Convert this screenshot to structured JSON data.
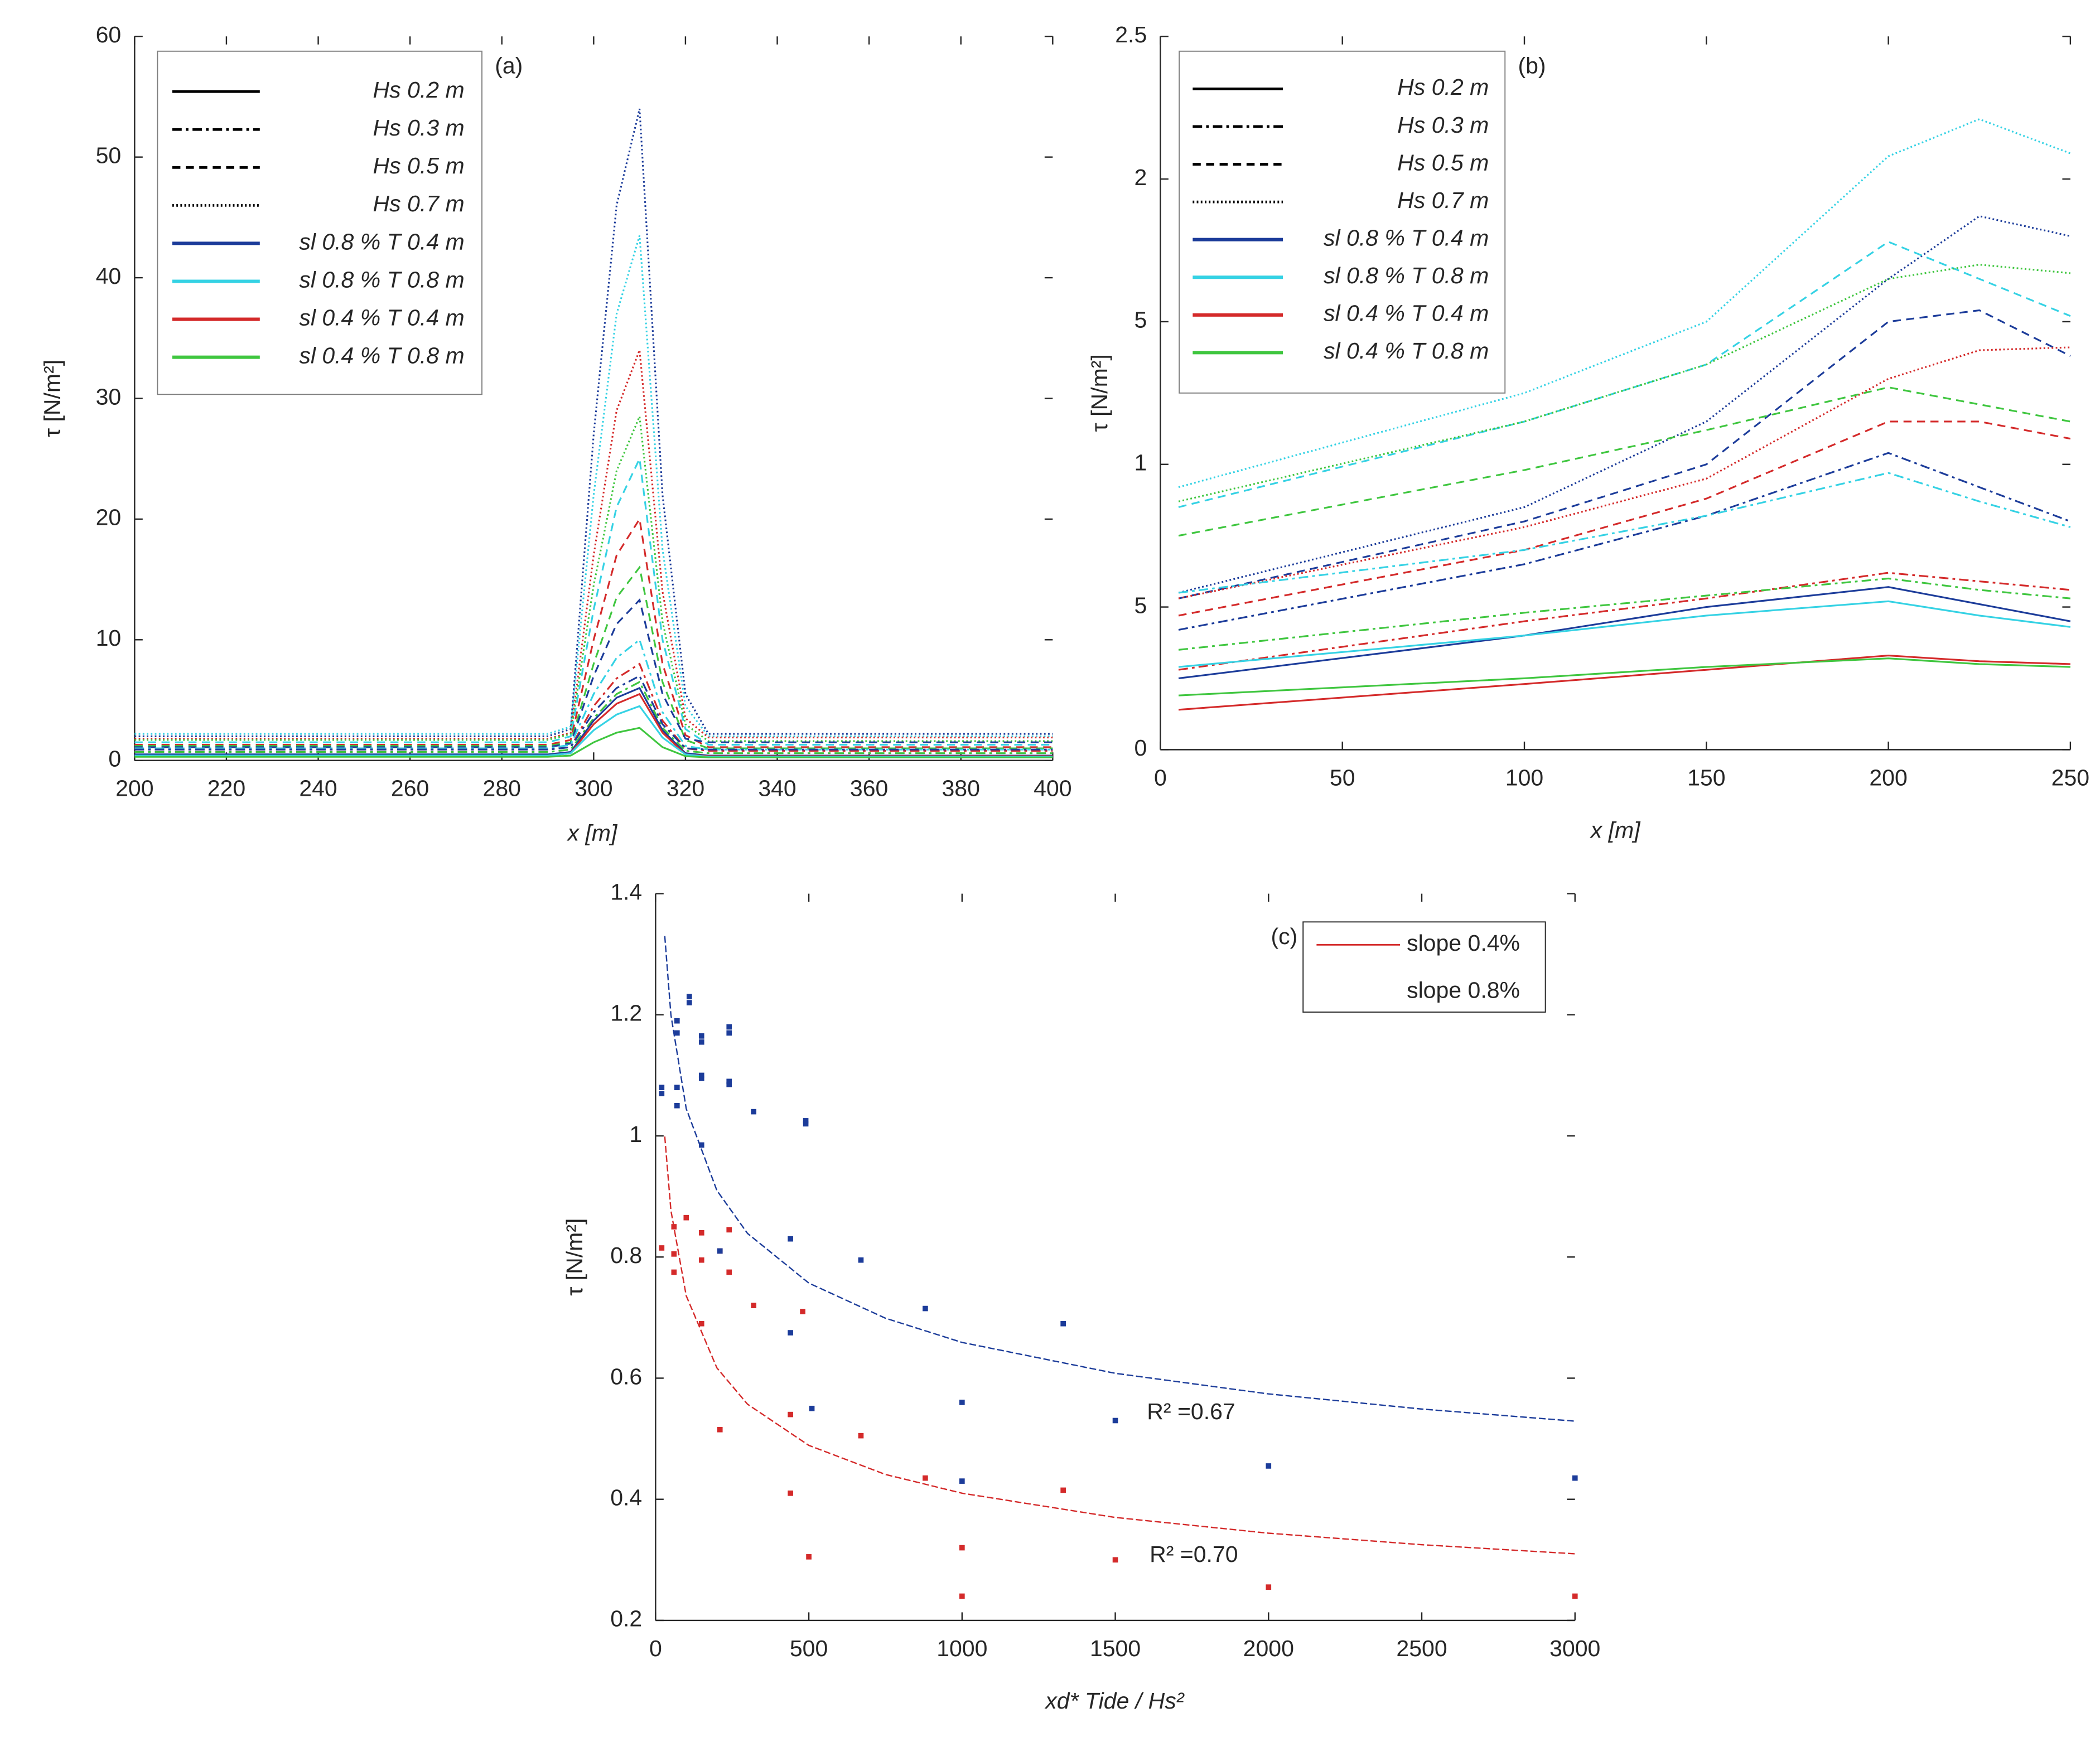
{
  "chart_data": [
    {
      "type": "line",
      "panel_label": "(a)",
      "xlabel": "x [m]",
      "ylabel": "τ [N/m²]",
      "xlim": [
        200,
        400
      ],
      "xticks": [
        200,
        220,
        240,
        260,
        280,
        300,
        320,
        340,
        360,
        380,
        400
      ],
      "ylim": [
        0,
        60
      ],
      "yticks": [
        0,
        10,
        20,
        30,
        40,
        50,
        60
      ],
      "legend": {
        "styles": [
          {
            "label": "Hs 0.2 m",
            "dash": "solid"
          },
          {
            "label": "Hs 0.3 m",
            "dash": "dashdot"
          },
          {
            "label": "Hs 0.5 m",
            "dash": "dashed"
          },
          {
            "label": "Hs 0.7 m",
            "dash": "dotted"
          }
        ],
        "colors": [
          {
            "label": "sl 0.8 % T 0.4 m",
            "color": "#1c3c9a"
          },
          {
            "label": "sl 0.8 % T 0.8 m",
            "color": "#35d2e4"
          },
          {
            "label": "sl 0.4 % T 0.4 m",
            "color": "#d42a2a"
          },
          {
            "label": "sl 0.4 % T 0.8 m",
            "color": "#3fc63f"
          }
        ]
      },
      "x": [
        200,
        290,
        295,
        300,
        305,
        310,
        315,
        320,
        325,
        400
      ],
      "series": [
        {
          "dash": "dotted",
          "color": "#1c3c9a",
          "values": [
            2.0,
            2.0,
            2.6,
            27,
            46,
            54,
            22,
            5.5,
            2.2,
            2.2
          ]
        },
        {
          "dash": "dotted",
          "color": "#35d2e4",
          "values": [
            2.2,
            2.2,
            2.8,
            22,
            37,
            43.5,
            17.5,
            4.5,
            2.0,
            2.0
          ]
        },
        {
          "dash": "dotted",
          "color": "#d42a2a",
          "values": [
            1.8,
            1.8,
            2.3,
            17,
            29,
            34,
            14,
            3.5,
            1.9,
            1.9
          ]
        },
        {
          "dash": "dotted",
          "color": "#3fc63f",
          "values": [
            1.7,
            1.7,
            2.2,
            14.5,
            24,
            28.5,
            11.5,
            3,
            1.6,
            1.6
          ]
        },
        {
          "dash": "dashed",
          "color": "#35d2e4",
          "values": [
            1.5,
            1.5,
            2,
            12.5,
            21,
            25,
            10,
            2.6,
            1.3,
            1.3
          ]
        },
        {
          "dash": "dashed",
          "color": "#d42a2a",
          "values": [
            1.3,
            1.3,
            1.7,
            10,
            17,
            20,
            8,
            2.1,
            1.1,
            1.1
          ]
        },
        {
          "dash": "dashed",
          "color": "#3fc63f",
          "values": [
            1.2,
            1.2,
            1.5,
            8,
            13.5,
            16,
            6.5,
            1.7,
            1.0,
            1.0
          ]
        },
        {
          "dash": "dashed",
          "color": "#1c3c9a",
          "values": [
            1.1,
            1.1,
            1.4,
            7,
            11.3,
            13.3,
            5.5,
            1.8,
            1.5,
            1.5
          ]
        },
        {
          "dash": "dashdot",
          "color": "#35d2e4",
          "values": [
            1.0,
            1.0,
            1.3,
            5.5,
            8.5,
            10,
            4,
            1.2,
            0.9,
            0.9
          ]
        },
        {
          "dash": "dashdot",
          "color": "#d42a2a",
          "values": [
            0.9,
            0.9,
            1.1,
            4.5,
            6.8,
            8,
            3.3,
            1,
            0.8,
            0.8
          ]
        },
        {
          "dash": "dashdot",
          "color": "#1c3c9a",
          "values": [
            0.9,
            0.9,
            1.1,
            4,
            6,
            7,
            3,
            1,
            0.9,
            0.9
          ]
        },
        {
          "dash": "dashdot",
          "color": "#3fc63f",
          "values": [
            0.7,
            0.7,
            0.9,
            3.5,
            5.5,
            6.5,
            2.7,
            0.8,
            0.6,
            0.6
          ]
        },
        {
          "dash": "solid",
          "color": "#1c3c9a",
          "values": [
            0.5,
            0.5,
            0.7,
            3.3,
            5.2,
            6,
            2.5,
            0.6,
            0.4,
            0.4
          ]
        },
        {
          "dash": "solid",
          "color": "#d42a2a",
          "values": [
            0.4,
            0.4,
            0.6,
            3,
            4.7,
            5.5,
            2.3,
            0.5,
            0.35,
            0.35
          ]
        },
        {
          "dash": "solid",
          "color": "#35d2e4",
          "values": [
            0.4,
            0.4,
            0.6,
            2.5,
            3.8,
            4.5,
            1.9,
            0.5,
            0.3,
            0.3
          ]
        },
        {
          "dash": "solid",
          "color": "#3fc63f",
          "values": [
            0.3,
            0.3,
            0.4,
            1.5,
            2.3,
            2.7,
            1.1,
            0.35,
            0.25,
            0.25
          ]
        }
      ]
    },
    {
      "type": "line",
      "panel_label": "(b)",
      "xlabel": "x [m]",
      "ylabel": "τ [N/m²]",
      "xlim": [
        0,
        250
      ],
      "xticks": [
        0,
        50,
        100,
        150,
        200,
        250
      ],
      "ylim": [
        0,
        2.5
      ],
      "yticks": [
        0,
        {
          "value": 0.5,
          "label": "5"
        },
        1,
        {
          "value": 1.5,
          "label": "5"
        },
        2,
        2.5
      ],
      "legend": {
        "styles": [
          {
            "label": "Hs 0.2 m",
            "dash": "solid"
          },
          {
            "label": "Hs 0.3 m",
            "dash": "dashdot"
          },
          {
            "label": "Hs 0.5 m",
            "dash": "dashed"
          },
          {
            "label": "Hs 0.7 m",
            "dash": "dotted"
          }
        ],
        "colors": [
          {
            "label": "sl 0.8 % T 0.4 m",
            "color": "#1c3c9a"
          },
          {
            "label": "sl 0.8 % T 0.8 m",
            "color": "#35d2e4"
          },
          {
            "label": "sl 0.4 % T 0.4 m",
            "color": "#d42a2a"
          },
          {
            "label": "sl 0.4 % T 0.8 m",
            "color": "#3fc63f"
          }
        ]
      },
      "x": [
        5,
        100,
        150,
        200,
        225,
        250
      ],
      "series": [
        {
          "dash": "dotted",
          "color": "#35d2e4",
          "values": [
            0.92,
            1.25,
            1.5,
            2.08,
            2.21,
            2.09
          ]
        },
        {
          "dash": "dotted",
          "color": "#1c3c9a",
          "values": [
            0.55,
            0.85,
            1.15,
            1.65,
            1.87,
            1.8
          ]
        },
        {
          "dash": "dashed",
          "color": "#35d2e4",
          "values": [
            0.85,
            1.15,
            1.35,
            1.78,
            1.65,
            1.52
          ]
        },
        {
          "dash": "dotted",
          "color": "#3fc63f",
          "values": [
            0.87,
            1.15,
            1.35,
            1.65,
            1.7,
            1.67
          ]
        },
        {
          "dash": "dashed",
          "color": "#1c3c9a",
          "values": [
            0.53,
            0.8,
            1.0,
            1.5,
            1.54,
            1.38
          ]
        },
        {
          "dash": "dotted",
          "color": "#d42a2a",
          "values": [
            0.53,
            0.78,
            0.95,
            1.3,
            1.4,
            1.41
          ]
        },
        {
          "dash": "dashed",
          "color": "#3fc63f",
          "values": [
            0.75,
            0.98,
            1.12,
            1.27,
            1.21,
            1.15
          ]
        },
        {
          "dash": "dashed",
          "color": "#d42a2a",
          "values": [
            0.47,
            0.7,
            0.88,
            1.15,
            1.15,
            1.09
          ]
        },
        {
          "dash": "dashdot",
          "color": "#1c3c9a",
          "values": [
            0.42,
            0.65,
            0.82,
            1.04,
            0.92,
            0.8
          ]
        },
        {
          "dash": "dashdot",
          "color": "#35d2e4",
          "values": [
            0.55,
            0.7,
            0.82,
            0.97,
            0.87,
            0.78
          ]
        },
        {
          "dash": "dashdot",
          "color": "#d42a2a",
          "values": [
            0.28,
            0.45,
            0.53,
            0.62,
            0.59,
            0.56
          ]
        },
        {
          "dash": "dashdot",
          "color": "#3fc63f",
          "values": [
            0.35,
            0.48,
            0.54,
            0.6,
            0.56,
            0.53
          ]
        },
        {
          "dash": "solid",
          "color": "#1c3c9a",
          "values": [
            0.25,
            0.4,
            0.5,
            0.57,
            0.51,
            0.45
          ]
        },
        {
          "dash": "solid",
          "color": "#35d2e4",
          "values": [
            0.29,
            0.4,
            0.47,
            0.52,
            0.47,
            0.43
          ]
        },
        {
          "dash": "solid",
          "color": "#d42a2a",
          "values": [
            0.14,
            0.23,
            0.28,
            0.33,
            0.31,
            0.3
          ]
        },
        {
          "dash": "solid",
          "color": "#3fc63f",
          "values": [
            0.19,
            0.25,
            0.29,
            0.32,
            0.3,
            0.29
          ]
        }
      ]
    },
    {
      "type": "scatter",
      "panel_label": "(c)",
      "xlabel": "xd* Tide / Hs²",
      "ylabel": "τ [N/m²]",
      "xlim": [
        0,
        3000
      ],
      "xticks": [
        0,
        500,
        1000,
        1500,
        2000,
        2500,
        3000
      ],
      "ylim": [
        0.2,
        1.4
      ],
      "yticks": [
        0.2,
        0.4,
        0.6,
        0.8,
        1,
        1.2,
        1.4
      ],
      "series": [
        {
          "name": "slope 0.4%",
          "color": "#d42a2a",
          "legend_marker": "line",
          "x": [
            20,
            60,
            60,
            60,
            100,
            150,
            150,
            150,
            210,
            210,
            240,
            240,
            320,
            480,
            440,
            440,
            500,
            670,
            880,
            1000,
            1000,
            1330,
            1500,
            2000,
            3000
          ],
          "values": [
            0.815,
            0.85,
            0.805,
            0.775,
            0.865,
            0.84,
            0.795,
            0.69,
            0.81,
            0.515,
            0.845,
            0.775,
            0.72,
            0.71,
            0.54,
            0.41,
            0.305,
            0.505,
            0.435,
            0.32,
            0.24,
            0.415,
            0.3,
            0.255,
            0.24
          ]
        },
        {
          "name": "slope 0.8%",
          "color": "#1c3c9a",
          "legend_marker": "none",
          "x": [
            20,
            20,
            70,
            70,
            70,
            70,
            110,
            110,
            150,
            150,
            150,
            150,
            150,
            240,
            240,
            240,
            240,
            210,
            320,
            490,
            490,
            440,
            440,
            510,
            670,
            880,
            1000,
            1000,
            1330,
            1500,
            2000,
            3000
          ],
          "values": [
            1.08,
            1.07,
            1.19,
            1.17,
            1.08,
            1.05,
            1.23,
            1.22,
            1.165,
            1.155,
            1.1,
            1.095,
            0.985,
            1.18,
            1.17,
            1.09,
            1.085,
            0.81,
            1.04,
            1.025,
            1.02,
            0.83,
            0.675,
            0.55,
            0.795,
            0.715,
            0.56,
            0.43,
            0.69,
            0.53,
            0.455,
            0.435
          ]
        }
      ],
      "fits": {
        "x": [
          30,
          50,
          100,
          200,
          300,
          500,
          750,
          1000,
          1500,
          2000,
          2500,
          3000
        ],
        "lines": [
          {
            "color": "#1c3c9a",
            "values": [
              1.33,
              1.2,
              1.045,
              0.91,
              0.839,
              0.757,
              0.699,
              0.659,
              0.608,
              0.574,
              0.549,
              0.529
            ]
          },
          {
            "color": "#d42a2a",
            "values": [
              0.999,
              0.877,
              0.736,
              0.617,
              0.557,
              0.489,
              0.441,
              0.41,
              0.37,
              0.344,
              0.325,
              0.31
            ]
          }
        ]
      },
      "annotations": [
        "R² =0.67",
        "R² =0.70"
      ]
    }
  ]
}
